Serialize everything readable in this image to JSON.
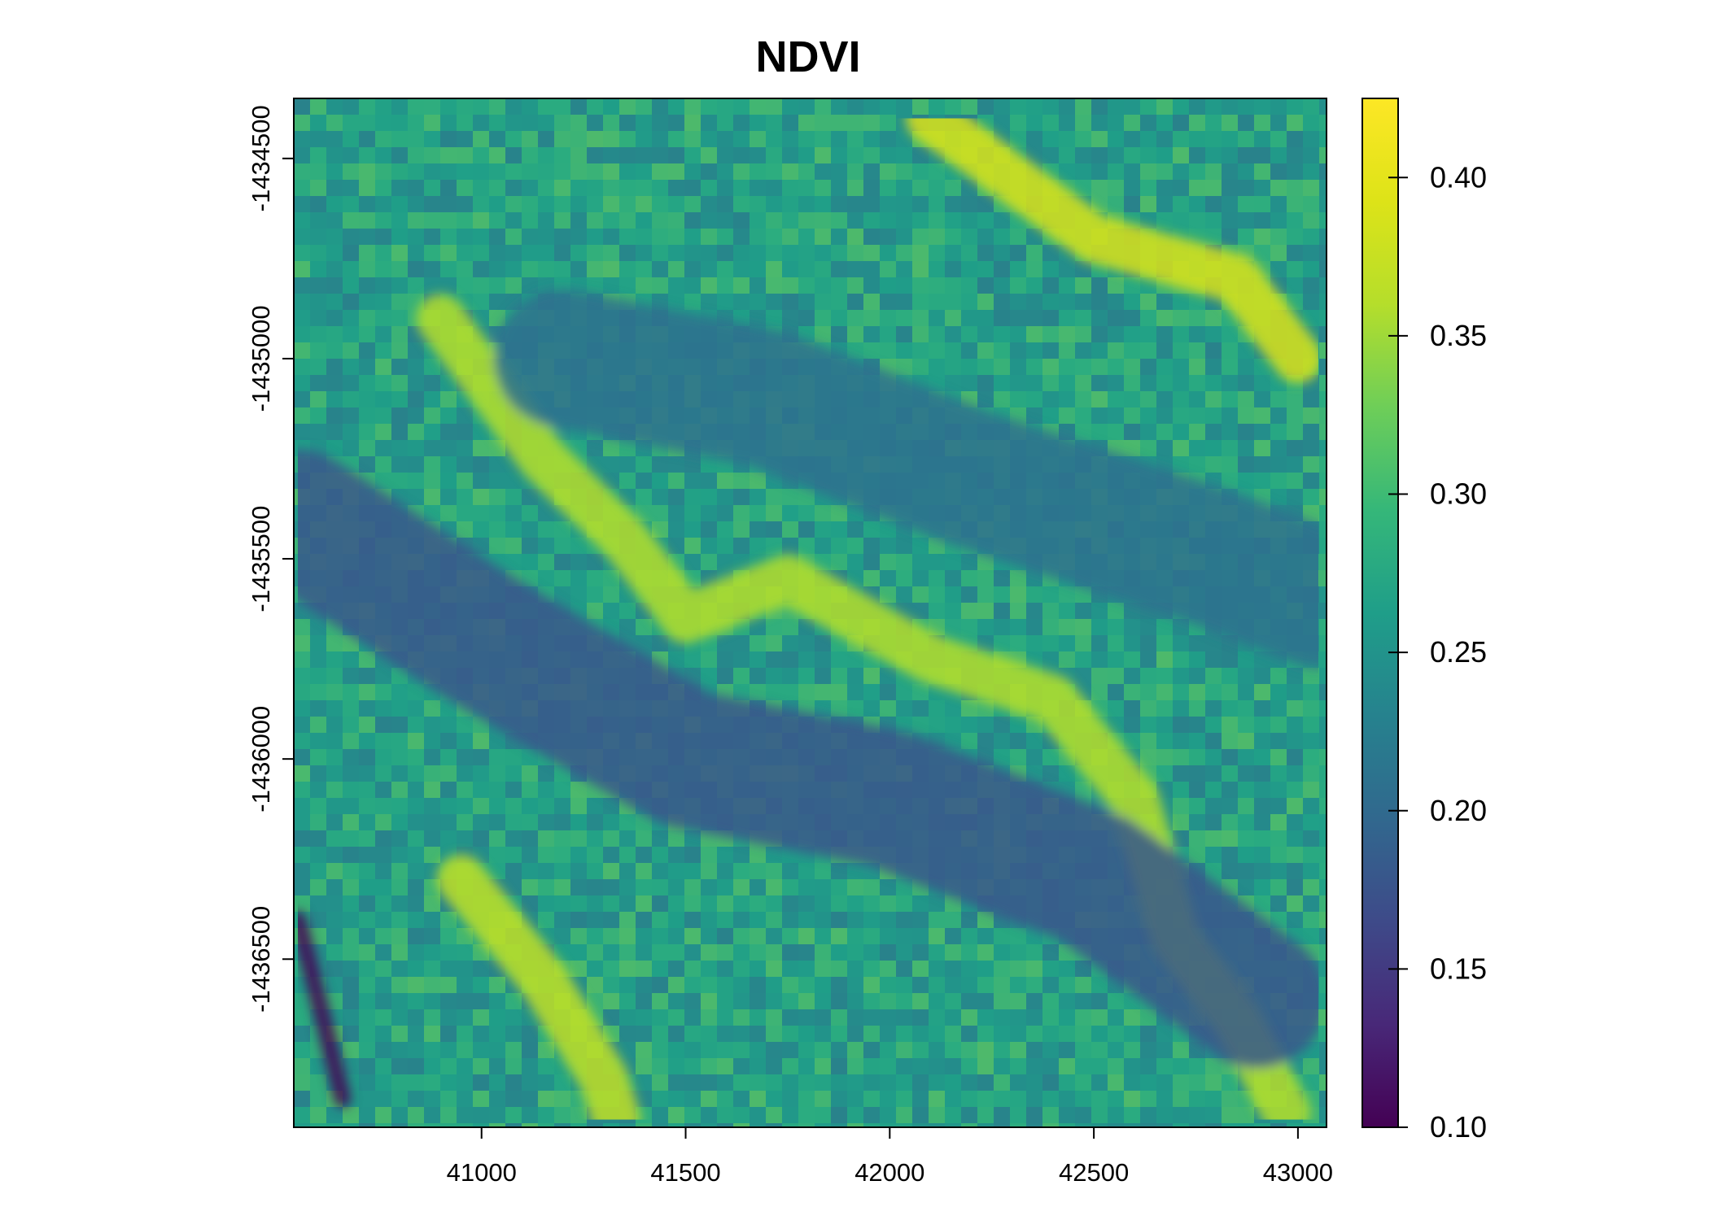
{
  "chart_data": {
    "type": "heatmap",
    "title": "NDVI",
    "xlabel": "",
    "ylabel": "",
    "xlim": [
      40540,
      43070
    ],
    "ylim": [
      -1436920,
      -1434350
    ],
    "x_ticks": [
      41000,
      41500,
      42000,
      42500,
      43000
    ],
    "x_tick_labels": [
      "41000",
      "41500",
      "42000",
      "42500",
      "43000"
    ],
    "y_ticks": [
      -1434500,
      -1435000,
      -1435500,
      -1436000,
      -1436500
    ],
    "y_tick_labels": [
      "-1434500",
      "-1435000",
      "-1435500",
      "-1436000",
      "-1436500"
    ],
    "colorbar": {
      "range": [
        0.1,
        0.425
      ],
      "ticks": [
        0.1,
        0.15,
        0.2,
        0.25,
        0.3,
        0.35,
        0.4
      ],
      "tick_labels": [
        "0.10",
        "0.15",
        "0.20",
        "0.25",
        "0.30",
        "0.35",
        "0.40"
      ],
      "colormap": "viridis"
    },
    "grid": false,
    "features": [
      {
        "name": "upper-right vegetated zone",
        "points": [
          [
            42100,
            -1434400
          ],
          [
            42500,
            -1434700
          ],
          [
            42850,
            -1434800
          ],
          [
            43000,
            -1435000
          ]
        ],
        "value": 0.39
      },
      {
        "name": "central diagonal ridge",
        "points": [
          [
            40900,
            -1434900
          ],
          [
            41150,
            -1435250
          ],
          [
            41350,
            -1435450
          ],
          [
            41500,
            -1435650
          ],
          [
            41750,
            -1435550
          ],
          [
            42100,
            -1435750
          ],
          [
            42400,
            -1435850
          ],
          [
            42600,
            -1436100
          ],
          [
            42700,
            -1436450
          ],
          [
            42850,
            -1436650
          ],
          [
            42970,
            -1436880
          ]
        ],
        "value": 0.36
      },
      {
        "name": "lower-left diagonal strip",
        "points": [
          [
            40950,
            -1436300
          ],
          [
            41150,
            -1436550
          ],
          [
            41300,
            -1436800
          ],
          [
            41330,
            -1436900
          ]
        ],
        "value": 0.37
      },
      {
        "name": "central low band",
        "points": [
          [
            40550,
            -1435400
          ],
          [
            41000,
            -1435700
          ],
          [
            41500,
            -1436000
          ],
          [
            42000,
            -1436100
          ],
          [
            42500,
            -1436300
          ],
          [
            42900,
            -1436600
          ]
        ],
        "value": 0.18
      },
      {
        "name": "upper-middle low band",
        "points": [
          [
            41200,
            -1435000
          ],
          [
            41700,
            -1435100
          ],
          [
            42200,
            -1435300
          ],
          [
            42800,
            -1435500
          ],
          [
            43050,
            -1435600
          ]
        ],
        "value": 0.21
      },
      {
        "name": "left-edge dark channel",
        "points": [
          [
            40550,
            -1436400
          ],
          [
            40600,
            -1436600
          ],
          [
            40660,
            -1436850
          ]
        ],
        "value": 0.1
      }
    ]
  }
}
